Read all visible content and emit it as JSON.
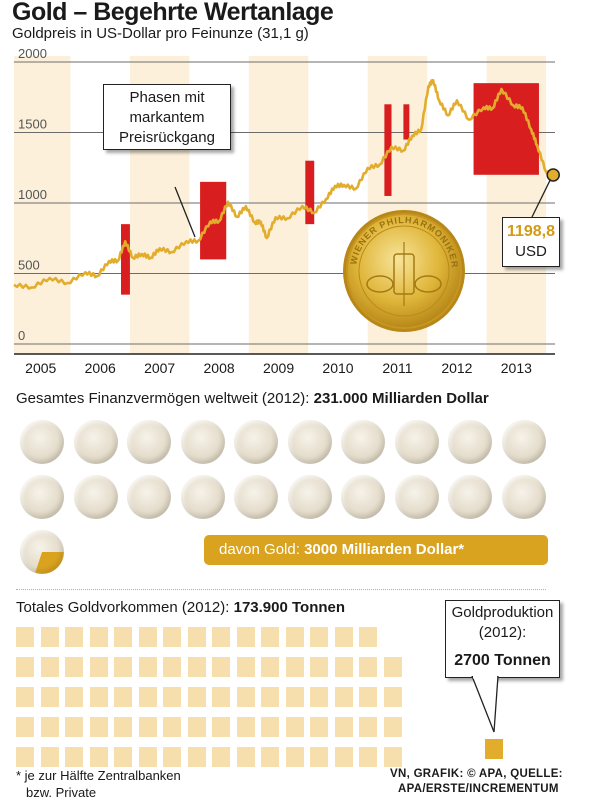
{
  "title": "Gold – Begehrte Wertanlage",
  "subtitle": "Goldpreis in US-Dollar pro Feinunze (31,1 g)",
  "chart_data": [
    {
      "type": "line",
      "title": "Gold – Begehrte Wertanlage",
      "subtitle": "Goldpreis in US-Dollar pro Feinunze (31,1 g)",
      "x_ticks": [
        "2005",
        "2006",
        "2007",
        "2008",
        "2009",
        "2010",
        "2011",
        "2012",
        "2013"
      ],
      "y_ticks": [
        0,
        500,
        1000,
        1500,
        2000
      ],
      "ylim": [
        0,
        2000
      ],
      "xlim": [
        2004.55,
        2013.65
      ],
      "grid": true,
      "series": [
        {
          "x": [
            2004.55,
            2004.85,
            2005.15,
            2005.45,
            2005.75,
            2005.95,
            2006.15,
            2006.3,
            2006.42,
            2006.55,
            2006.7,
            2006.85,
            2007.0,
            2007.2,
            2007.45,
            2007.65,
            2007.85,
            2008.0,
            2008.15,
            2008.3,
            2008.45,
            2008.6,
            2008.7,
            2008.8,
            2008.95,
            2009.15,
            2009.4,
            2009.6,
            2009.8,
            2009.95,
            2010.1,
            2010.3,
            2010.5,
            2010.7,
            2010.9,
            2011.1,
            2011.25,
            2011.4,
            2011.52,
            2011.6,
            2011.7,
            2011.85,
            2012.0,
            2012.2,
            2012.45,
            2012.6,
            2012.75,
            2012.95,
            2013.1,
            2013.25,
            2013.35,
            2013.5,
            2013.62
          ],
          "values": [
            420,
            430,
            440,
            460,
            480,
            510,
            560,
            620,
            700,
            640,
            610,
            640,
            650,
            680,
            700,
            760,
            840,
            900,
            980,
            930,
            950,
            890,
            840,
            780,
            870,
            920,
            950,
            960,
            1000,
            1150,
            1100,
            1130,
            1220,
            1300,
            1370,
            1400,
            1450,
            1550,
            1800,
            1900,
            1700,
            1650,
            1700,
            1620,
            1650,
            1700,
            1780,
            1720,
            1650,
            1550,
            1380,
            1250,
            1198.8
          ]
        }
      ],
      "shaded_years": [
        2005,
        2007,
        2009,
        2011,
        2013
      ],
      "decline_phases": [
        {
          "x": [
            2006.35,
            2006.5
          ],
          "y": [
            350,
            850
          ]
        },
        {
          "x": [
            2007.68,
            2008.12
          ],
          "y": [
            600,
            1150
          ]
        },
        {
          "x": [
            2009.45,
            2009.6
          ],
          "y": [
            850,
            1300
          ]
        },
        {
          "x": [
            2010.78,
            2010.9
          ],
          "y": [
            1050,
            1700
          ]
        },
        {
          "x": [
            2011.1,
            2011.2
          ],
          "y": [
            1450,
            1700
          ]
        },
        {
          "x": [
            2012.28,
            2013.38
          ],
          "y": [
            1200,
            1850
          ]
        }
      ],
      "decline_label": [
        "Phasen mit",
        "markantem",
        "Preisrückgang"
      ],
      "last_value": {
        "x": 2013.62,
        "y": 1198.8,
        "label": "1198,8",
        "unit": "USD"
      },
      "colors": {
        "line": "#e2ad2c",
        "shade": "#fcf0db",
        "decline": "#d81e1e",
        "grid": "#6b6b6b"
      }
    },
    {
      "type": "pictogram",
      "heading": "Gesamtes Finanzvermögen weltweit (2012):",
      "heading_value": "231.000 Milliarden Dollar",
      "total": 231000,
      "unit": "Milliarden Dollar",
      "symbols": 21,
      "gold_value": 3000,
      "gold_label_prefix": "davon Gold:",
      "gold_label_value": "3000 Milliarden Dollar*",
      "gold_fraction_of_symbol": 0.3
    },
    {
      "type": "pictogram",
      "heading": "Totales Goldvorkommen (2012):",
      "heading_value": "173.900 Tonnen",
      "total": 173900,
      "production": 2700,
      "unit": "Tonnen",
      "production_label": [
        "Goldproduktion",
        "(2012):"
      ],
      "production_value": "2700 Tonnen",
      "colors": {
        "stock": "#f6dfac",
        "production": "#e2ad2c"
      }
    }
  ],
  "footnote": [
    "* je zur Hälfte Zentralbanken",
    "bzw. Private"
  ],
  "credit": [
    "VN, GRAFIK: © APA, QUELLE:",
    "APA/ERSTE/INCREMENTUM"
  ],
  "coin_text": "WIENER PHILHARMONIKER"
}
